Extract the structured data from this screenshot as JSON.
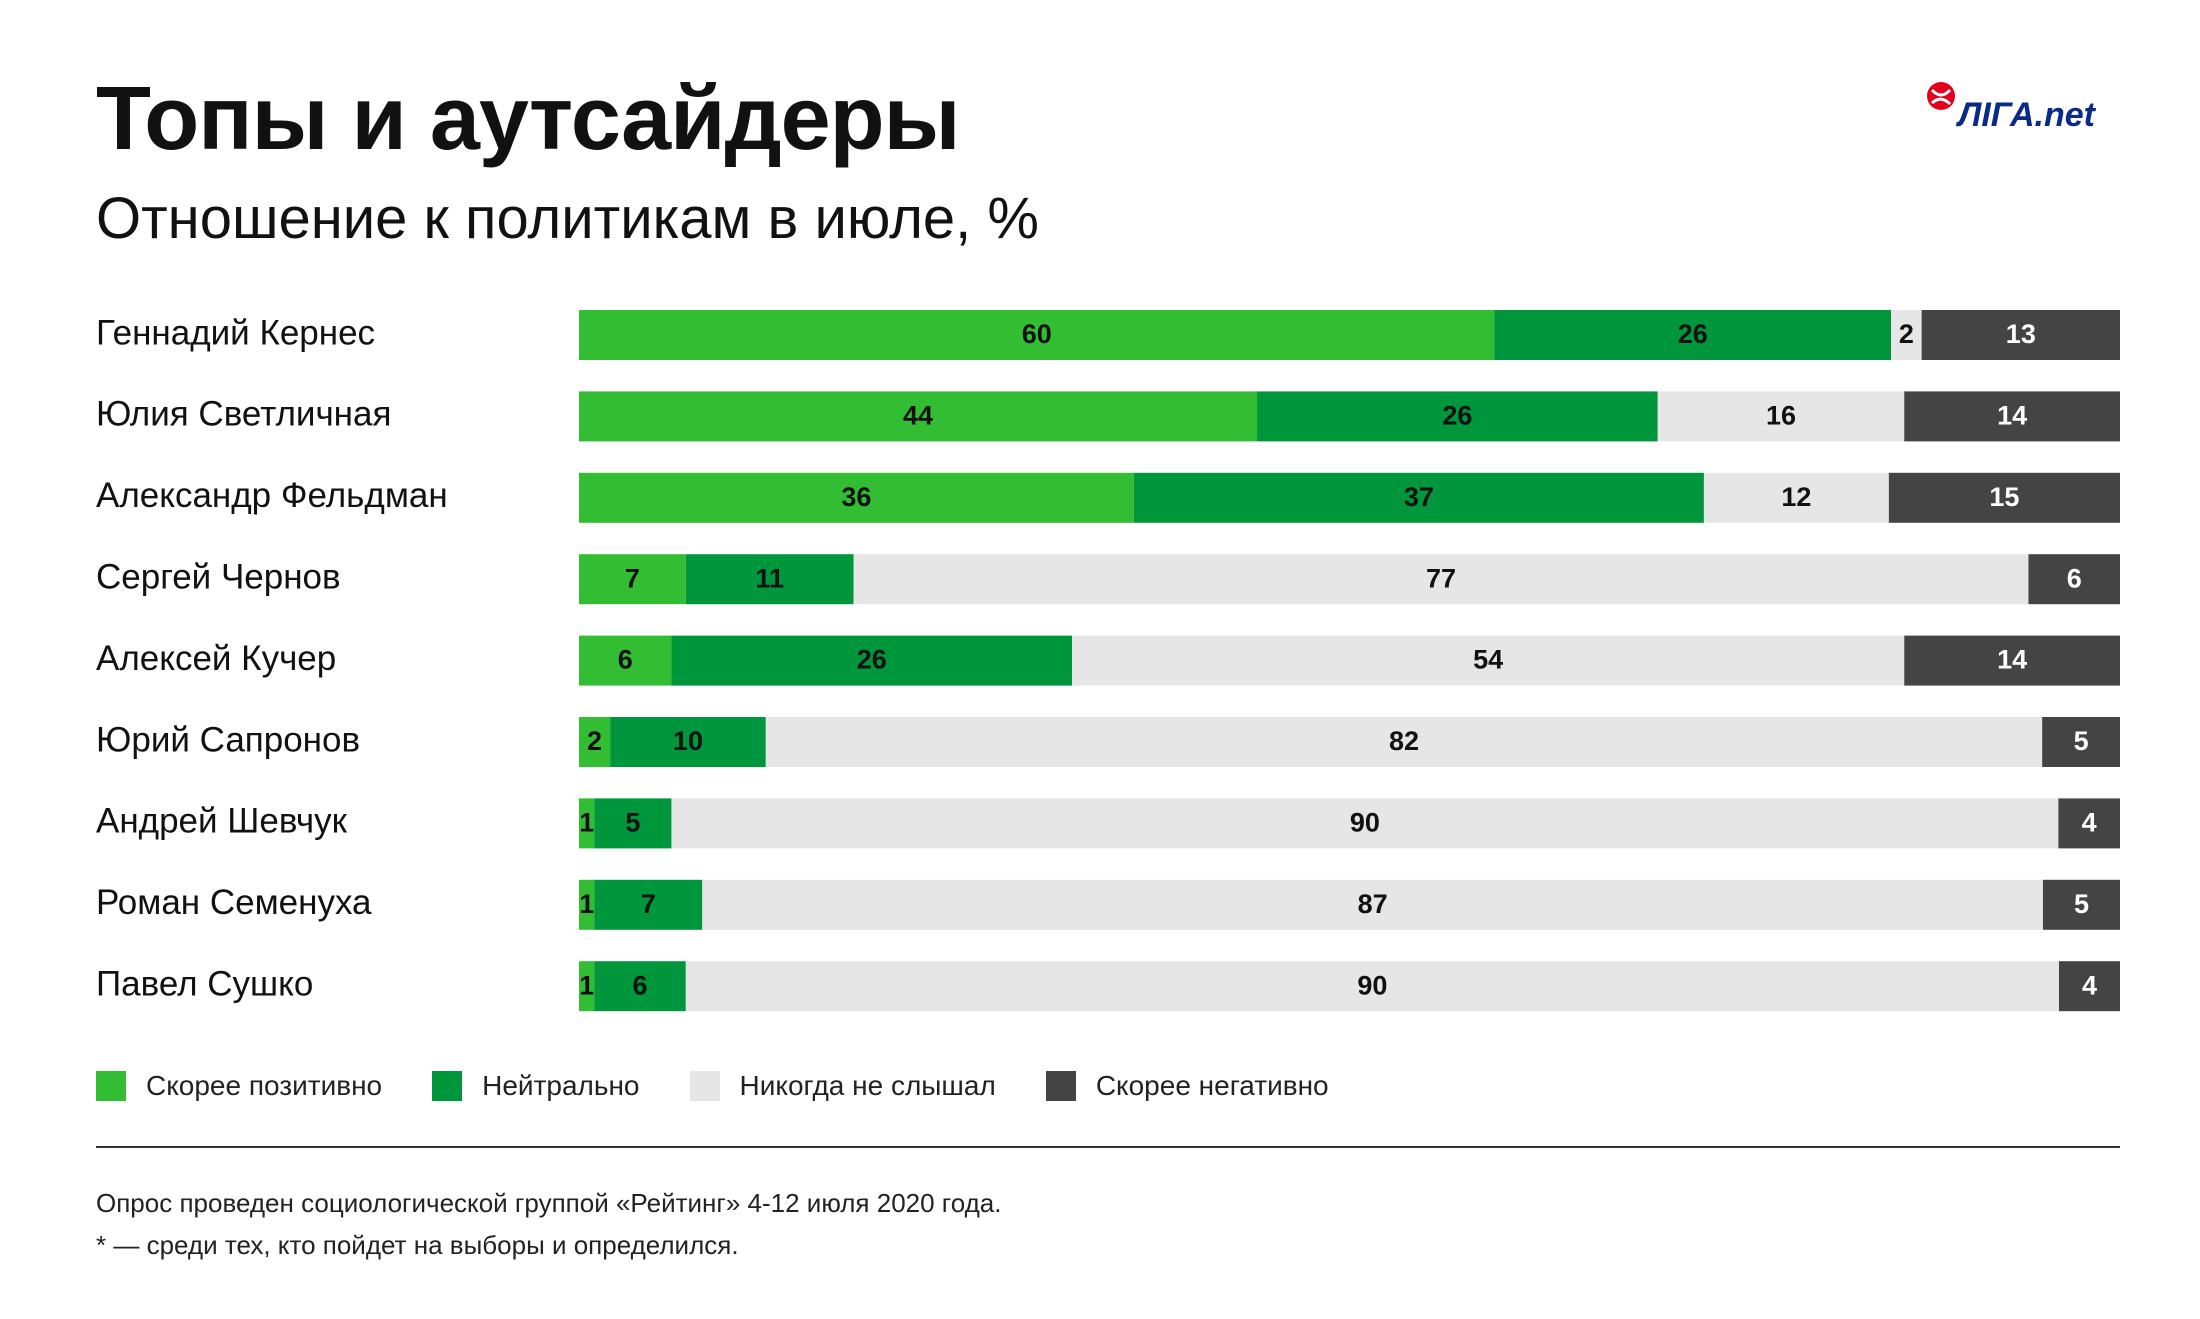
{
  "header": {
    "title": "Топы и аутсайдеры",
    "subtitle": "Отношение к политикам в июле, %",
    "logo_text": "ЛIГА.net"
  },
  "chart_data": {
    "type": "bar",
    "orientation": "horizontal",
    "stacked": true,
    "title": "Топы и аутсайдеры",
    "subtitle": "Отношение к политикам в июле, %",
    "unit": "%",
    "categories": [
      "Геннадий Кернес",
      "Юлия Светличная",
      "Александр Фельдман",
      "Сергей Чернов",
      "Алексей Кучер",
      "Юрий Сапронов",
      "Андрей Шевчук",
      "Роман Семенуха",
      "Павел Сушко"
    ],
    "series": [
      {
        "name": "Скорее позитивно",
        "color": "#33bd33",
        "label_color": "#111111",
        "values": [
          60,
          44,
          36,
          7,
          6,
          2,
          1,
          1,
          1
        ]
      },
      {
        "name": "Нейтрально",
        "color": "#00963c",
        "label_color": "#111111",
        "values": [
          26,
          26,
          37,
          11,
          26,
          10,
          5,
          7,
          6
        ]
      },
      {
        "name": "Никогда не слышал",
        "color": "#e6e6e6",
        "label_color": "#111111",
        "values": [
          2,
          16,
          12,
          77,
          54,
          82,
          90,
          87,
          90
        ]
      },
      {
        "name": "Скорее негативно",
        "color": "#444444",
        "label_color": "#ffffff",
        "values": [
          13,
          14,
          15,
          6,
          14,
          5,
          4,
          5,
          4
        ]
      }
    ],
    "legend_position": "bottom-left",
    "grid": false
  },
  "footer": {
    "note1": "Опрос проведен социологической группой «Рейтинг» 4-12 июля 2020 года.",
    "note2": "* — среди тех, кто пойдет на выборы и определился."
  }
}
